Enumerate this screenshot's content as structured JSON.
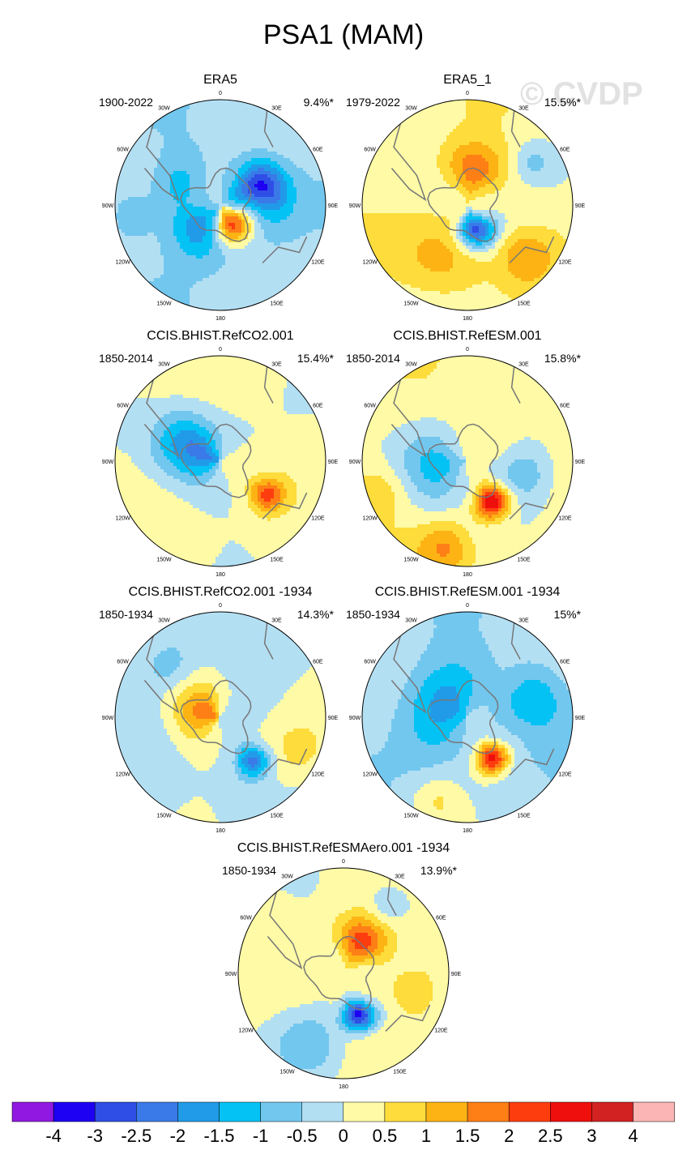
{
  "title": "PSA1 (MAM)",
  "watermark": "© CVDP",
  "lon_labels": [
    "0",
    "30E",
    "60E",
    "90E",
    "120E",
    "150E",
    "180",
    "150W",
    "120W",
    "90W",
    "60W",
    "30W"
  ],
  "panels": [
    {
      "title": "ERA5",
      "period": "1900-2022",
      "pct": "9.4%*",
      "blobs": [
        [
          -1,
          1.2,
          0.32,
          0.3,
          -1.5
        ],
        [
          -2,
          1.1,
          0.45,
          0.22,
          -0.5
        ],
        [
          2.5,
          2.6,
          0.22,
          0.18,
          0
        ],
        [
          -1.5,
          3.9,
          0.3,
          0.26,
          0.3
        ],
        [
          -0.8,
          5.2,
          0.45,
          0.22,
          0
        ],
        [
          -0.6,
          4.6,
          0.85,
          0.25,
          0
        ]
      ],
      "base": -0.3
    },
    {
      "title": "ERA5_1",
      "period": "1979-2022",
      "pct": "15.5%*",
      "blobs": [
        [
          1.5,
          0.2,
          0.35,
          0.25,
          0
        ],
        [
          -3,
          2.8,
          0.25,
          0.17,
          0.4
        ],
        [
          1,
          3.6,
          0.55,
          0.35,
          0
        ],
        [
          1,
          2.3,
          0.75,
          0.25,
          0
        ],
        [
          -0.8,
          1.0,
          0.75,
          0.2,
          0
        ]
      ],
      "base": 0.3
    },
    {
      "title": "CCIS.BHIST.RefCO2.001",
      "period": "1850-2014",
      "pct": "15.4%*",
      "blobs": [
        [
          2,
          2.2,
          0.55,
          0.16,
          0.2
        ],
        [
          -2,
          5.0,
          0.12,
          0.35,
          0
        ],
        [
          -1,
          5.2,
          0.45,
          0.28,
          0
        ]
      ],
      "base": 0.2
    },
    {
      "title": "CCIS.BHIST.RefESM.001",
      "period": "1850-2014",
      "pct": "15.8%*",
      "blobs": [
        [
          3,
          2.6,
          0.45,
          0.16,
          0
        ],
        [
          -1.5,
          4.5,
          0.3,
          0.35,
          0
        ],
        [
          -1.2,
          1.8,
          0.55,
          0.3,
          0
        ],
        [
          1.2,
          3.4,
          0.85,
          0.25,
          0
        ],
        [
          0.7,
          4.4,
          0.9,
          0.25,
          0
        ]
      ],
      "base": 0.3
    },
    {
      "title": "CCIS.BHIST.RefCO2.001 -1934",
      "period": "1850-1934",
      "pct": "14.3%*",
      "blobs": [
        [
          -2,
          2.5,
          0.52,
          0.15,
          0.3
        ],
        [
          2,
          5.0,
          0.15,
          0.3,
          0
        ],
        [
          1,
          2.0,
          0.8,
          0.35,
          0
        ],
        [
          -0.7,
          5.5,
          0.7,
          0.25,
          0
        ]
      ],
      "base": -0.2
    },
    {
      "title": "CCIS.BHIST.RefESM.001 -1934",
      "period": "1850-1934",
      "pct": "15%*",
      "blobs": [
        [
          3,
          2.6,
          0.45,
          0.15,
          0
        ],
        [
          -1.5,
          5.2,
          0.25,
          0.35,
          0
        ],
        [
          -1.2,
          1.3,
          0.65,
          0.3,
          0
        ],
        [
          0.8,
          3.5,
          0.85,
          0.25,
          0
        ]
      ],
      "base": -0.3
    },
    {
      "title": "CCIS.BHIST.RefESMAero.001 -1934",
      "period": "1850-1934",
      "pct": "13.9%*",
      "blobs": [
        [
          -3.5,
          2.8,
          0.42,
          0.15,
          0.4
        ],
        [
          2,
          0.5,
          0.35,
          0.22,
          0
        ],
        [
          -1,
          3.6,
          0.75,
          0.3,
          0
        ],
        [
          -0.8,
          0.6,
          0.8,
          0.2,
          0
        ],
        [
          0.8,
          1.8,
          0.7,
          0.25,
          0
        ]
      ],
      "base": 0.2
    }
  ],
  "colorbar": {
    "colors": [
      "#9018e0",
      "#1e00f2",
      "#2f4ee6",
      "#3a7ae8",
      "#219be8",
      "#05c2f5",
      "#72c7ee",
      "#b3dff3",
      "#fefaa6",
      "#fddc3c",
      "#fdb314",
      "#fe7f16",
      "#fe3d0f",
      "#ef0f0c",
      "#d22222",
      "#fbb5b5"
    ],
    "labels": [
      "-4",
      "-3",
      "-2.5",
      "-2",
      "-1.5",
      "-1",
      "-0.5",
      "0",
      "0.5",
      "1",
      "1.5",
      "2",
      "2.5",
      "3",
      "4"
    ]
  }
}
